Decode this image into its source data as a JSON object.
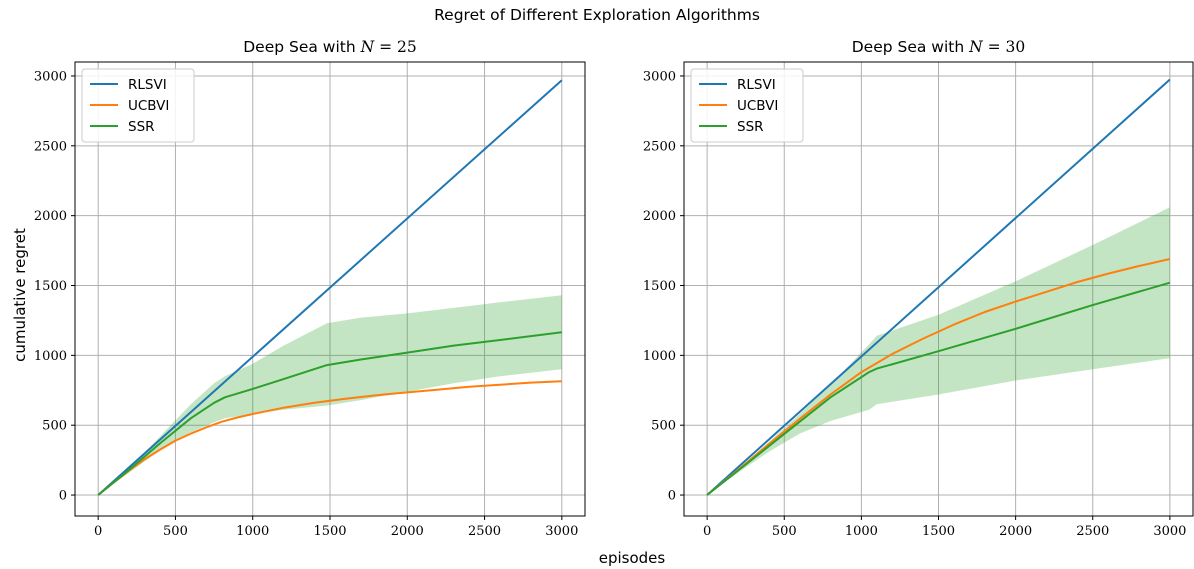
{
  "figure": {
    "suptitle": "Regret of Different Exploration Algorithms",
    "xlabel": "episodes",
    "ylabel": "cumulative regret"
  },
  "colors": {
    "RLSVI": "#1f77b4",
    "UCBVI": "#ff7f0e",
    "SSR": "#2ca02c",
    "band": "#2ca02c",
    "grid": "#b0b0b0"
  },
  "chart_data": [
    {
      "type": "line",
      "title": "Deep Sea with N = 25",
      "title_parts": {
        "prefix": "Deep Sea with ",
        "var": "N",
        "suffix": " = 25"
      },
      "xlim": [
        -150,
        3150
      ],
      "ylim": [
        -150,
        3100
      ],
      "xticks": [
        0,
        500,
        1000,
        1500,
        2000,
        2500,
        3000
      ],
      "yticks": [
        0,
        500,
        1000,
        1500,
        2000,
        2500,
        3000
      ],
      "grid": true,
      "legend": "top-left",
      "series": [
        {
          "name": "RLSVI",
          "x": [
            0,
            3000
          ],
          "y": [
            0,
            2970
          ]
        },
        {
          "name": "UCBVI",
          "x": [
            0,
            100,
            200,
            300,
            400,
            500,
            600,
            700,
            800,
            900,
            1000,
            1200,
            1400,
            1600,
            1800,
            2000,
            2200,
            2400,
            2600,
            2800,
            3000
          ],
          "y": [
            0,
            90,
            175,
            255,
            325,
            390,
            440,
            485,
            525,
            555,
            580,
            625,
            660,
            690,
            715,
            735,
            755,
            775,
            790,
            805,
            815
          ]
        },
        {
          "name": "SSR",
          "x": [
            0,
            200,
            400,
            600,
            750,
            820,
            1000,
            1200,
            1480,
            1700,
            2000,
            2300,
            2600,
            3000
          ],
          "y": [
            0,
            180,
            370,
            550,
            660,
            700,
            760,
            830,
            930,
            970,
            1020,
            1070,
            1110,
            1165
          ],
          "band_upper": [
            0,
            190,
            420,
            650,
            800,
            850,
            940,
            1070,
            1230,
            1270,
            1300,
            1340,
            1380,
            1430
          ],
          "band_lower": [
            0,
            160,
            320,
            450,
            520,
            550,
            580,
            610,
            640,
            680,
            740,
            800,
            850,
            900
          ]
        }
      ]
    },
    {
      "type": "line",
      "title": "Deep Sea with N = 30",
      "title_parts": {
        "prefix": "Deep Sea with ",
        "var": "N",
        "suffix": " = 30"
      },
      "xlim": [
        -150,
        3150
      ],
      "ylim": [
        -150,
        3100
      ],
      "xticks": [
        0,
        500,
        1000,
        1500,
        2000,
        2500,
        3000
      ],
      "yticks": [
        0,
        500,
        1000,
        1500,
        2000,
        2500,
        3000
      ],
      "grid": true,
      "legend": "top-left",
      "series": [
        {
          "name": "RLSVI",
          "x": [
            0,
            3000
          ],
          "y": [
            0,
            2975
          ]
        },
        {
          "name": "UCBVI",
          "x": [
            0,
            200,
            400,
            600,
            800,
            1000,
            1200,
            1400,
            1600,
            1800,
            2000,
            2200,
            2400,
            2600,
            2800,
            3000
          ],
          "y": [
            0,
            180,
            365,
            545,
            720,
            880,
            1010,
            1120,
            1220,
            1310,
            1385,
            1455,
            1525,
            1585,
            1640,
            1690
          ]
        },
        {
          "name": "SSR",
          "x": [
            0,
            200,
            400,
            600,
            800,
            1050,
            1100,
            1500,
            2000,
            2500,
            3000
          ],
          "y": [
            0,
            175,
            350,
            525,
            700,
            880,
            905,
            1030,
            1190,
            1360,
            1520
          ],
          "band_upper": [
            0,
            185,
            380,
            580,
            790,
            1080,
            1140,
            1290,
            1530,
            1790,
            2060
          ],
          "band_lower": [
            0,
            160,
            310,
            440,
            530,
            610,
            650,
            720,
            820,
            900,
            980
          ]
        }
      ]
    }
  ]
}
